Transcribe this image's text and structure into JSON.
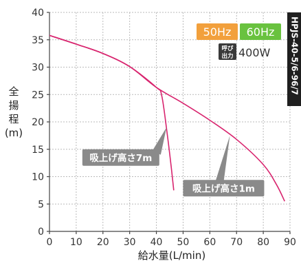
{
  "chart_data": {
    "type": "line",
    "title": "",
    "xlabel": "給水量(L/min)",
    "ylabel_chars": [
      "全",
      "揚",
      "程"
    ],
    "ylabel_unit": "(m)",
    "xlim": [
      0,
      90
    ],
    "ylim": [
      0,
      40
    ],
    "x_ticks": [
      "0",
      "10",
      "20",
      "30",
      "40",
      "50",
      "60",
      "70",
      "80",
      "90"
    ],
    "y_ticks": [
      "0",
      "5",
      "10",
      "15",
      "20",
      "25",
      "30",
      "35",
      "40"
    ],
    "grid": true,
    "series": [
      {
        "label": "吸上げ高さ1m",
        "color": "#d8246e",
        "points": [
          [
            0,
            35.8
          ],
          [
            10,
            34.2
          ],
          [
            20,
            32.5
          ],
          [
            30,
            30.1
          ],
          [
            40,
            26.3
          ],
          [
            50,
            23.4
          ],
          [
            60,
            20.3
          ],
          [
            70,
            16.8
          ],
          [
            80,
            12.2
          ],
          [
            85,
            8.5
          ],
          [
            88,
            5.5
          ]
        ]
      },
      {
        "label": "吸上げ高さ7m",
        "color": "#d8246e",
        "points": [
          [
            0,
            35.8
          ],
          [
            10,
            34.2
          ],
          [
            20,
            32.5
          ],
          [
            30,
            30.1
          ],
          [
            40,
            26.3
          ],
          [
            42,
            24.8
          ],
          [
            44,
            18.0
          ],
          [
            45.5,
            12.0
          ],
          [
            46.5,
            7.5
          ]
        ]
      }
    ],
    "annotations": [
      {
        "text": "吸上げ高さ7m",
        "target": [
          43.8,
          19.0
        ]
      },
      {
        "text": "吸上げ高さ1m",
        "target": [
          67.5,
          17.5
        ]
      }
    ]
  },
  "legend": {
    "hz50": {
      "label": "50Hz",
      "color": "#f2a03c"
    },
    "hz60": {
      "label": "60Hz",
      "color": "#69c23f"
    },
    "power_small_top": "呼び",
    "power_small_bottom": "出力",
    "power_value": "400W",
    "power_badge_color": "#3a3a3a"
  },
  "model": "HPJS-40-5/6-96/7"
}
